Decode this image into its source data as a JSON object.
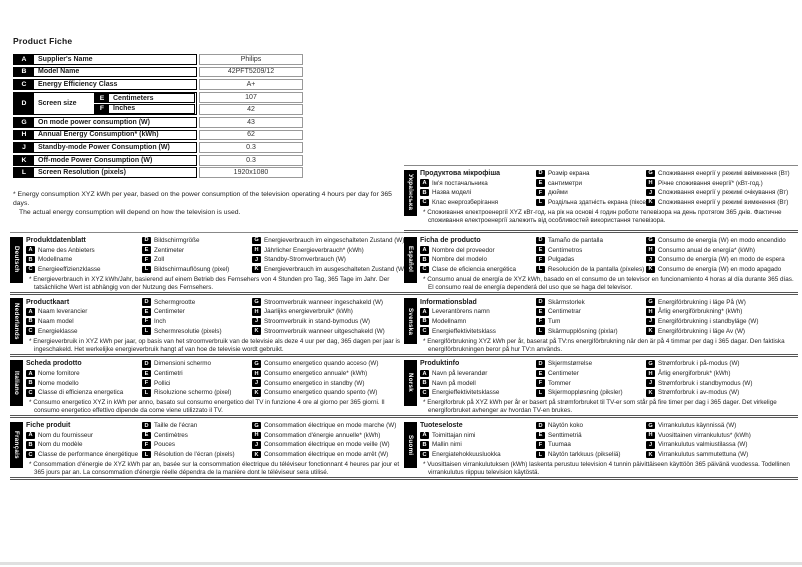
{
  "page": {
    "title": "Product Fiche"
  },
  "colors": {
    "badge_bg": "#000000",
    "text": "#1a1a1a",
    "rule": "#555555"
  },
  "letters": {
    "a": "A",
    "b": "B",
    "c": "C",
    "d": "D",
    "e": "E",
    "f": "F",
    "g": "G",
    "h": "H",
    "j": "J",
    "k": "K",
    "l": "L"
  },
  "fiche": {
    "a_label": "Supplier's Name",
    "a_value": "Philips",
    "b_label": "Model Name",
    "b_value": "42PFT5209/12",
    "c_label": "Energy Efficiency Class",
    "c_value": "A+",
    "d_label": "Screen size",
    "e_label": "Centimeters",
    "e_value": "107",
    "f_label": "Inches",
    "f_value": "42",
    "g_label": "On mode power consumption (W)",
    "g_value": "43",
    "h_label": "Annual Energy Consumption* (kWh)",
    "h_value": "62",
    "j_label": "Standby-mode Power Consumption (W)",
    "j_value": "0.3",
    "k_label": "Off-mode Power Consumption (W)",
    "k_value": "0.3",
    "l_label": "Screen Resolution (pixels)",
    "l_value": "1920x1080",
    "footnote_line1": "* Energy consumption XYZ kWh per year, based on the power consumption of the television operating 4 hours per day for 365 days.",
    "footnote_line2": "The actual energy consumption will depend on how the television is used."
  },
  "blocks": {
    "left": [
      {
        "id": "deutsch",
        "lang": "Deutsch",
        "title": "Produktdatenblatt",
        "a": "Name des Anbieters",
        "b": "Modellname",
        "c": "Energieeffizienzklasse",
        "d": "Bildschirmgröße",
        "e": "Zentimeter",
        "f": "Zoll",
        "l": "Bildschirmauflösung (pixel)",
        "g": "Energieverbrauch im eingeschalteten Zustand (W)",
        "h": "Jährlicher Energieverbrauch* (kWh)",
        "j": "Standby-Stromverbrauch (W)",
        "k": "Energieverbrauch im ausgeschalteten Zustand (W)",
        "footnote": "* Energieverbrauch in XYZ kWh/Jahr, basierend auf einem Betrieb des Fernsehers von 4 Stunden pro Tag, 365 Tage im Jahr. Der tatsächliche Wert ist abhängig von der Nutzung des Fernsehers."
      },
      {
        "id": "nederlands",
        "lang": "Nederlands",
        "title": "Productkaart",
        "a": "Naam leverancier",
        "b": "Naam model",
        "c": "Energieklasse",
        "d": "Schermgrootte",
        "e": "Centimeter",
        "f": "Inch",
        "l": "Schermresolutie (pixels)",
        "g": "Stroomverbruik wanneer ingeschakeld (W)",
        "h": "Jaarlijks energieverbruik* (kWh)",
        "j": "Stroomverbruik in stand-bymodus (W)",
        "k": "Stroomverbruik wanneer uitgeschakeld (W)",
        "footnote": "* Energieverbruik in XYZ kWh per jaar, op basis van het stroomverbruik van de televisie als deze 4 uur per dag, 365 dagen per jaar is ingeschakeld. Het werkelijke energieverbruik hangt af van hoe de televisie wordt gebruikt."
      },
      {
        "id": "italiano",
        "lang": "Italiano",
        "title": "Scheda prodotto",
        "a": "Nome fornitore",
        "b": "Nome modello",
        "c": "Classe di efficienza energetica",
        "d": "Dimensioni schermo",
        "e": "Centimetri",
        "f": "Pollici",
        "l": "Risoluzione schermo (pixel)",
        "g": "Consumo energetico quando acceso (W)",
        "h": "Consumo energetico annuale* (kWh)",
        "j": "Consumo energetico in standby (W)",
        "k": "Consumo energetico quando spento (W)",
        "footnote": "* Consumo energetico XYZ in kWh per anno, basato sul consumo energetico del TV in funzione 4 ore al giorno per 365 giorni. Il consumo energetico effettivo dipende da come viene utilizzato il TV."
      },
      {
        "id": "francais",
        "lang": "Français",
        "title": "Fiche produit",
        "a": "Nom du fournisseur",
        "b": "Nom du modèle",
        "c": "Classe de performance énergétique",
        "d": "Taille de l'écran",
        "e": "Centimètres",
        "f": "Pouces",
        "l": "Résolution de l'écran (pixels)",
        "g": "Consommation électrique en mode marche (W)",
        "h": "Consommation d'énergie annuelle* (kWh)",
        "j": "Consommation électrique en mode veille (W)",
        "k": "Consommation électrique en mode arrêt (W)",
        "footnote": "* Consommation d'énergie de XYZ kWh par an, basée sur la consommation électrique du téléviseur fonctionnant 4 heures par jour et 365 jours par an. La consommation d'énergie réelle dépendra de la manière dont le téléviseur sera utilisé."
      }
    ],
    "right": [
      {
        "id": "ukrainska",
        "lang": "Українська",
        "title": "Продуктова мікрофіша",
        "a": "Ім'я постачальника",
        "b": "Назва моделі",
        "c": "Клас енергозберігання",
        "d": "Розмір екрана",
        "e": "сантиметри",
        "f": "дюйми",
        "l": "Роздільна здатність екрана (пікселі)",
        "g": "Споживання енергії у режимі ввімкнення (Вт)",
        "h": "Річне споживання енергії* (кВт-год.)",
        "j": "Споживання енергії у режимі очікування (Вт)",
        "k": "Споживання енергії у режимі вимкнення (Вт)",
        "footnote": "* Споживання електроенергії XYZ кВт-год. на рік на основі 4 годин роботи телевізора на день протягом 365 днів. Фактичне споживання електроенергії залежить від особливостей використання телевізора."
      },
      {
        "id": "espanol",
        "lang": "Español",
        "title": "Ficha de producto",
        "a": "Nombre del proveedor",
        "b": "Nombre del modelo",
        "c": "Clase de eficiencia energética",
        "d": "Tamaño de pantalla",
        "e": "Centímetros",
        "f": "Pulgadas",
        "l": "Resolución de la pantalla (píxeles)",
        "g": "Consumo de energía (W) en modo encendido",
        "h": "Consumo anual de energía* (kWh)",
        "j": "Consumo de energía (W) en modo de espera",
        "k": "Consumo de energía (W) en modo apagado",
        "footnote": "* Consumo anual de energía de XYZ kWh, basado en el consumo de un televisor en funcionamiento 4 horas al día durante 365 días. El consumo real de energía dependerá del uso que se haga del televisor."
      },
      {
        "id": "svenska",
        "lang": "Svenska",
        "title": "Informationsblad",
        "a": "Leverantörens namn",
        "b": "Modellnamn",
        "c": "Energieffektivitetsklass",
        "d": "Skärmstorlek",
        "e": "Centimetrar",
        "f": "Tum",
        "l": "Skärmupplösning (pixlar)",
        "g": "Energiförbrukning i läge På (W)",
        "h": "Årlig energiförbrukning* (kWh)",
        "j": "Energiförbrukning i standbyläge (W)",
        "k": "Energiförbrukning i läge Av (W)",
        "footnote": "* Energiförbrukning XYZ kWh per år, baserat på TV:ns energiförbrukning när den är på 4 timmar per dag i 365 dagar. Den faktiska energiförbrukningen beror på hur TV:n används."
      },
      {
        "id": "norsk",
        "lang": "Norsk",
        "title": "Produktinfo",
        "a": "Navn på leverandør",
        "b": "Navn på modell",
        "c": "Energieffektivitetsklasse",
        "d": "Skjermstørrelse",
        "e": "Centimeter",
        "f": "Tommer",
        "l": "Skjermoppløsning (piksler)",
        "g": "Strømforbruk i på-modus (W)",
        "h": "Årlig energiforbruk* (kWh)",
        "j": "Strømforbruk i standbymodus (W)",
        "k": "Strømforbruk i av-modus (W)",
        "footnote": "* Energiforbruk på XYZ kWh per år er basert på strømforbruket til TV-er som står på fire timer per dag i 365 dager. Det virkelige energiforbruket avhenger av hvordan TV-en brukes."
      },
      {
        "id": "suomi",
        "lang": "Suomi",
        "title": "Tuoteseloste",
        "a": "Toimittajan nimi",
        "b": "Mallin nimi",
        "c": "Energiatehokkuusluokka",
        "d": "Näytön koko",
        "e": "Senttimetriä",
        "f": "Tuumaa",
        "l": "Näytön tarkkuus (pikseliä)",
        "g": "Virrankulutus käynnissä (W)",
        "h": "Vuosittainen virrankulutus* (kWh)",
        "j": "Virrankulutus valmiustilassa (W)",
        "k": "Virrankulutus sammutettuna (W)",
        "footnote": "* Vuosittaisen virrankulutuksen (kWh) laskenta perustuu television 4 tunnin päivittäiseen käyttöön 365 päivänä vuodessa. Todellinen virrankulutus riippuu television käytöstä."
      }
    ]
  }
}
